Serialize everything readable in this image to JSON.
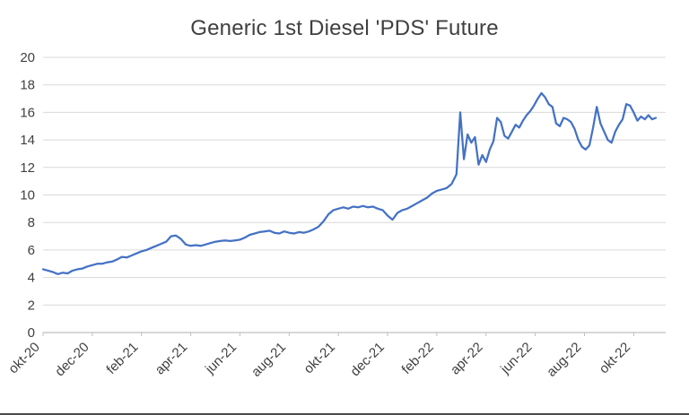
{
  "chart_data": {
    "type": "line",
    "title": "Generic 1st Diesel 'PDS' Future",
    "xlabel": "",
    "ylabel": "",
    "grid": true,
    "legend": "none",
    "xlim": [
      0,
      25.3
    ],
    "ylim": [
      0,
      20
    ],
    "y_ticks": [
      0,
      2,
      4,
      6,
      8,
      10,
      12,
      14,
      16,
      18,
      20
    ],
    "x_tick_positions": [
      0,
      2,
      4,
      6,
      8,
      10,
      12,
      14,
      16,
      18,
      20,
      22,
      24
    ],
    "x_tick_labels": [
      "okt-20",
      "dec-20",
      "feb-21",
      "apr-21",
      "jun-21",
      "aug-21",
      "okt-21",
      "dec-21",
      "feb-22",
      "apr-22",
      "jun-22",
      "aug-22",
      "okt-22"
    ],
    "colors": {
      "line": "#4472C4",
      "grid": "#D9D9D9",
      "axis": "#BFBFBF",
      "text": "#404040"
    },
    "series": [
      {
        "name": "Generic 1st Diesel 'PDS' Future",
        "points": [
          [
            0.0,
            4.6
          ],
          [
            0.2,
            4.5
          ],
          [
            0.4,
            4.4
          ],
          [
            0.6,
            4.25
          ],
          [
            0.8,
            4.35
          ],
          [
            1.0,
            4.3
          ],
          [
            1.2,
            4.5
          ],
          [
            1.4,
            4.6
          ],
          [
            1.6,
            4.65
          ],
          [
            1.8,
            4.8
          ],
          [
            2.0,
            4.9
          ],
          [
            2.2,
            5.0
          ],
          [
            2.4,
            5.0
          ],
          [
            2.6,
            5.1
          ],
          [
            2.8,
            5.15
          ],
          [
            3.0,
            5.3
          ],
          [
            3.2,
            5.5
          ],
          [
            3.4,
            5.45
          ],
          [
            3.6,
            5.6
          ],
          [
            3.8,
            5.75
          ],
          [
            4.0,
            5.9
          ],
          [
            4.2,
            6.0
          ],
          [
            4.4,
            6.15
          ],
          [
            4.6,
            6.3
          ],
          [
            4.8,
            6.45
          ],
          [
            5.0,
            6.6
          ],
          [
            5.2,
            7.0
          ],
          [
            5.4,
            7.05
          ],
          [
            5.6,
            6.8
          ],
          [
            5.8,
            6.4
          ],
          [
            6.0,
            6.3
          ],
          [
            6.2,
            6.35
          ],
          [
            6.4,
            6.3
          ],
          [
            6.6,
            6.4
          ],
          [
            6.8,
            6.5
          ],
          [
            7.0,
            6.6
          ],
          [
            7.2,
            6.65
          ],
          [
            7.4,
            6.7
          ],
          [
            7.6,
            6.65
          ],
          [
            7.8,
            6.7
          ],
          [
            8.0,
            6.75
          ],
          [
            8.2,
            6.9
          ],
          [
            8.4,
            7.1
          ],
          [
            8.6,
            7.2
          ],
          [
            8.8,
            7.3
          ],
          [
            9.0,
            7.35
          ],
          [
            9.2,
            7.4
          ],
          [
            9.4,
            7.25
          ],
          [
            9.6,
            7.2
          ],
          [
            9.8,
            7.35
          ],
          [
            10.0,
            7.25
          ],
          [
            10.2,
            7.2
          ],
          [
            10.4,
            7.3
          ],
          [
            10.6,
            7.25
          ],
          [
            10.8,
            7.35
          ],
          [
            11.0,
            7.5
          ],
          [
            11.2,
            7.7
          ],
          [
            11.4,
            8.1
          ],
          [
            11.6,
            8.6
          ],
          [
            11.8,
            8.9
          ],
          [
            12.0,
            9.0
          ],
          [
            12.2,
            9.1
          ],
          [
            12.4,
            9.0
          ],
          [
            12.6,
            9.15
          ],
          [
            12.8,
            9.1
          ],
          [
            13.0,
            9.2
          ],
          [
            13.2,
            9.1
          ],
          [
            13.4,
            9.15
          ],
          [
            13.6,
            9.0
          ],
          [
            13.8,
            8.9
          ],
          [
            14.0,
            8.5
          ],
          [
            14.2,
            8.2
          ],
          [
            14.4,
            8.7
          ],
          [
            14.6,
            8.9
          ],
          [
            14.8,
            9.0
          ],
          [
            15.0,
            9.2
          ],
          [
            15.2,
            9.4
          ],
          [
            15.4,
            9.6
          ],
          [
            15.6,
            9.8
          ],
          [
            15.8,
            10.1
          ],
          [
            16.0,
            10.3
          ],
          [
            16.2,
            10.4
          ],
          [
            16.4,
            10.5
          ],
          [
            16.6,
            10.8
          ],
          [
            16.8,
            11.5
          ],
          [
            16.95,
            16.0
          ],
          [
            17.1,
            12.6
          ],
          [
            17.25,
            14.4
          ],
          [
            17.4,
            13.8
          ],
          [
            17.55,
            14.2
          ],
          [
            17.7,
            12.2
          ],
          [
            17.85,
            12.9
          ],
          [
            18.0,
            12.4
          ],
          [
            18.15,
            13.3
          ],
          [
            18.3,
            13.9
          ],
          [
            18.45,
            15.6
          ],
          [
            18.6,
            15.3
          ],
          [
            18.75,
            14.3
          ],
          [
            18.9,
            14.1
          ],
          [
            19.05,
            14.6
          ],
          [
            19.2,
            15.1
          ],
          [
            19.35,
            14.9
          ],
          [
            19.5,
            15.4
          ],
          [
            19.65,
            15.8
          ],
          [
            19.8,
            16.1
          ],
          [
            19.95,
            16.5
          ],
          [
            20.1,
            17.0
          ],
          [
            20.25,
            17.4
          ],
          [
            20.4,
            17.1
          ],
          [
            20.55,
            16.6
          ],
          [
            20.7,
            16.4
          ],
          [
            20.85,
            15.2
          ],
          [
            21.0,
            15.0
          ],
          [
            21.15,
            15.6
          ],
          [
            21.3,
            15.5
          ],
          [
            21.45,
            15.3
          ],
          [
            21.6,
            14.8
          ],
          [
            21.75,
            14.0
          ],
          [
            21.9,
            13.5
          ],
          [
            22.05,
            13.3
          ],
          [
            22.2,
            13.6
          ],
          [
            22.35,
            14.9
          ],
          [
            22.5,
            16.4
          ],
          [
            22.65,
            15.2
          ],
          [
            22.8,
            14.6
          ],
          [
            22.95,
            14.0
          ],
          [
            23.1,
            13.8
          ],
          [
            23.25,
            14.6
          ],
          [
            23.4,
            15.1
          ],
          [
            23.55,
            15.5
          ],
          [
            23.7,
            16.6
          ],
          [
            23.85,
            16.5
          ],
          [
            24.0,
            16.0
          ],
          [
            24.15,
            15.4
          ],
          [
            24.3,
            15.7
          ],
          [
            24.45,
            15.5
          ],
          [
            24.6,
            15.8
          ],
          [
            24.75,
            15.5
          ],
          [
            24.9,
            15.6
          ]
        ]
      }
    ]
  }
}
